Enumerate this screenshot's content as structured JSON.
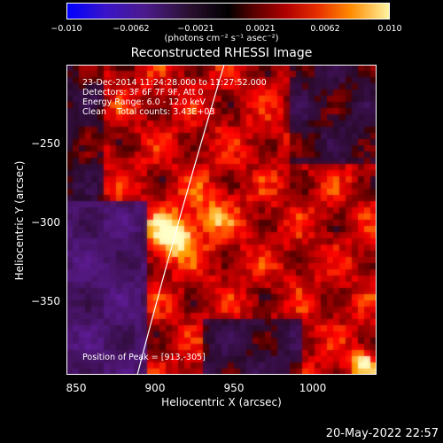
{
  "colorbar": {
    "ticks": [
      "−0.010",
      "−0.0062",
      "−0.0021",
      "0.0021",
      "0.0062",
      "0.010"
    ],
    "units": "(photons cm⁻² s⁻¹ asec⁻²)"
  },
  "title": "Reconstructed RHESSI Image",
  "info": {
    "time": "23-Dec-2014 11:24:28.000 to 11:27:52.000",
    "detectors": "Detectors: 3F 6F 7F 9F, Att 0",
    "energy": "Energy Range: 6.0 - 12.0 keV",
    "clean": "Clean    Total counts: 3.43E+03",
    "peak": "Position of Peak = [913,-305]"
  },
  "axes": {
    "xlabel": "Heliocentric X (arcsec)",
    "ylabel": "Heliocentric Y (arcsec)",
    "xticks": [
      "850",
      "900",
      "950",
      "1000"
    ],
    "yticks": [
      "−250",
      "−300",
      "−350"
    ]
  },
  "footer_date": "20-May-2022 22:57"
}
